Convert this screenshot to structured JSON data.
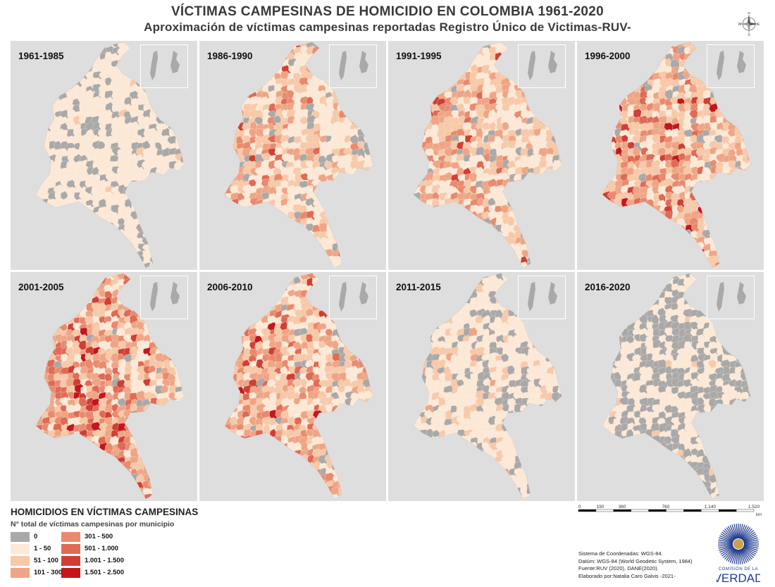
{
  "title": "VÍCTIMAS CAMPESINAS DE HOMICIDIO EN COLOMBIA 1961-2020",
  "subtitle": "Aproximación de víctimas campesinas reportadas Registro Único de Victimas-RUV-",
  "compass": {
    "icon": "compass-rose-icon",
    "n": "N",
    "s": "S",
    "e": "E",
    "w": "W"
  },
  "colors": [
    "#a9a9a9",
    "#fde9d7",
    "#f8c9a8",
    "#efa585",
    "#e98a6e",
    "#df6a55",
    "#d13e35",
    "#c4161c"
  ],
  "panels": [
    {
      "label": "1961-1985",
      "distribution": [
        0.26,
        0.72,
        0.02,
        0,
        0,
        0,
        0,
        0
      ]
    },
    {
      "label": "1986-1990",
      "distribution": [
        0.11,
        0.44,
        0.25,
        0.13,
        0.04,
        0.02,
        0.01,
        0
      ]
    },
    {
      "label": "1991-1995",
      "distribution": [
        0.1,
        0.4,
        0.26,
        0.16,
        0.05,
        0.02,
        0.01,
        0
      ]
    },
    {
      "label": "1996-2000",
      "distribution": [
        0.07,
        0.28,
        0.27,
        0.22,
        0.09,
        0.04,
        0.02,
        0.01
      ]
    },
    {
      "label": "2001-2005",
      "distribution": [
        0.03,
        0.18,
        0.25,
        0.25,
        0.14,
        0.09,
        0.04,
        0.02
      ]
    },
    {
      "label": "2006-2010",
      "distribution": [
        0.06,
        0.3,
        0.28,
        0.2,
        0.09,
        0.04,
        0.02,
        0.01
      ]
    },
    {
      "label": "2011-2015",
      "distribution": [
        0.24,
        0.62,
        0.12,
        0.02,
        0,
        0,
        0,
        0
      ]
    },
    {
      "label": "2016-2020",
      "distribution": [
        0.52,
        0.46,
        0.02,
        0,
        0,
        0,
        0,
        0
      ]
    }
  ],
  "legend": {
    "title": "HOMICIDIOS EN VÍCTIMAS CAMPESINAS",
    "subtitle": "N° total de víctimas campesinas por municipio",
    "items": [
      {
        "label": "0",
        "color": "#a9a9a9"
      },
      {
        "label": "1 - 50",
        "color": "#fde9d7"
      },
      {
        "label": "51 - 100",
        "color": "#f8c9a8"
      },
      {
        "label": "101 - 300",
        "color": "#efa585"
      },
      {
        "label": "301 - 500",
        "color": "#e98a6e"
      },
      {
        "label": "501 - 1.000",
        "color": "#df6a55"
      },
      {
        "label": "1.001 - 1.500",
        "color": "#d13e35"
      },
      {
        "label": "1.501 - 2.500",
        "color": "#c4161c"
      }
    ]
  },
  "scale": {
    "ticks": [
      "0",
      "190",
      "380",
      "760",
      "1.140",
      "1.520"
    ],
    "unit": "km"
  },
  "notes": [
    "Sistema de Coordenadas: WGS-84.",
    "Datúm: WGS-84 (World Geodetic System, 1984)",
    "Fuente:RUV (2020), DANE(2020).",
    "Elaborado por:Natalia Caro Galvis -2021-"
  ],
  "logo": {
    "line1": "COMISIÓN DE LA",
    "line2": "VERDAD"
  }
}
